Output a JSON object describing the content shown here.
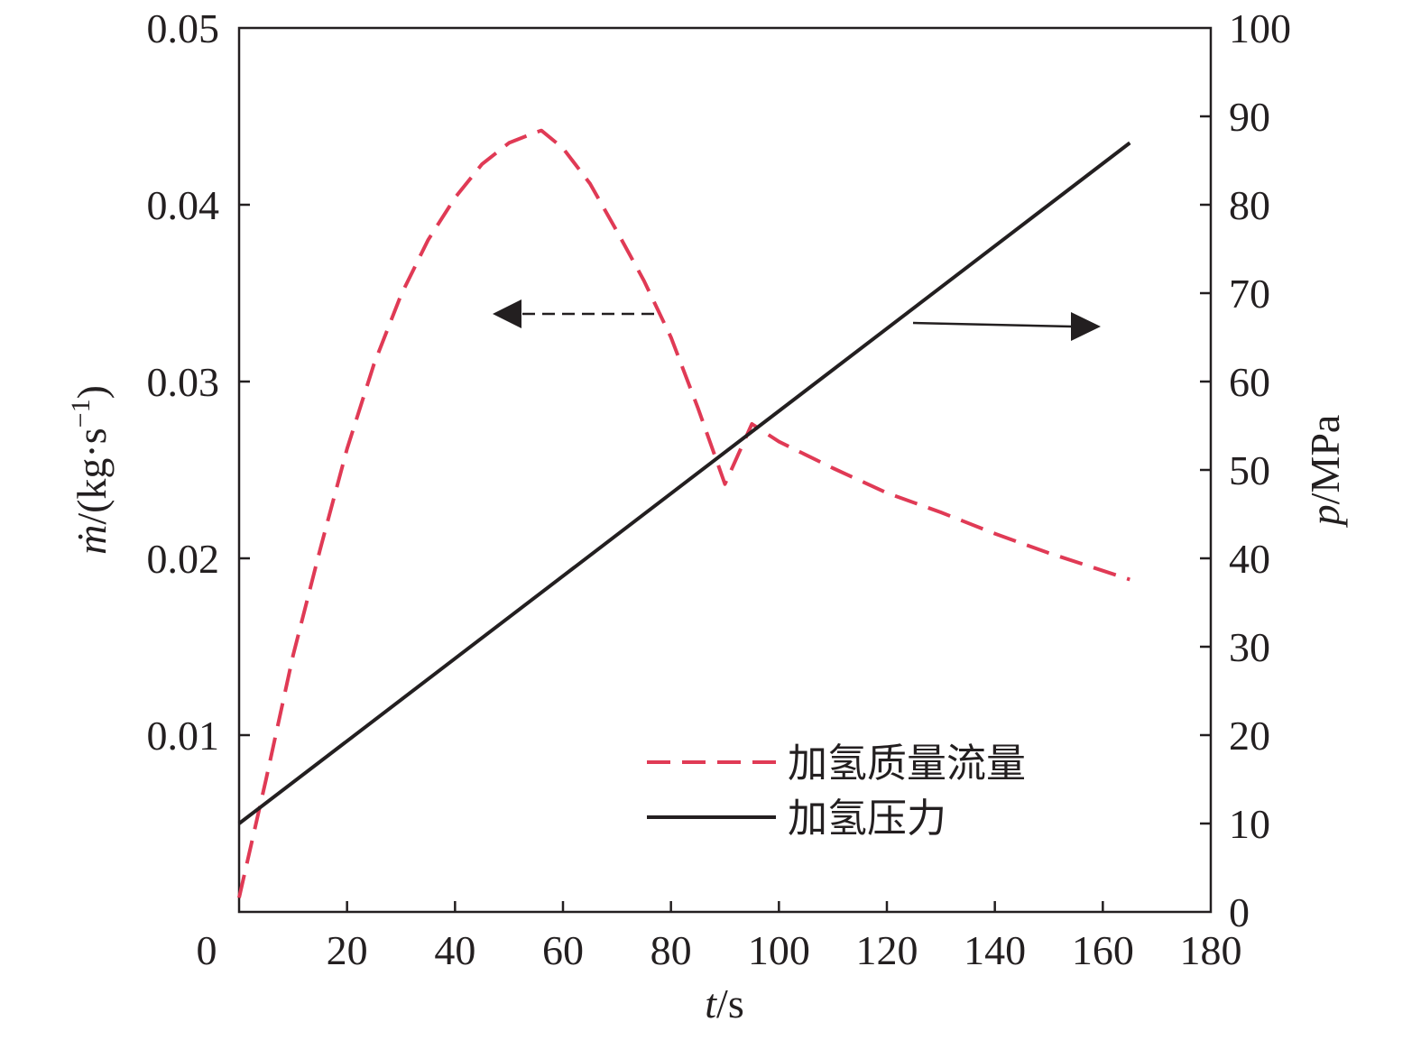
{
  "chart_data": {
    "type": "line",
    "xlabel_italic": "t",
    "xlabel_unit": "/s",
    "ylabel_left_italic": "ṁ",
    "ylabel_left_unit": "/(kg·s",
    "ylabel_left_sup": "−1",
    "ylabel_left_close": ")",
    "ylabel_right_italic": "p",
    "ylabel_right_unit": "/MPa",
    "xlim": [
      0,
      180
    ],
    "ylim_left": [
      0,
      0.05
    ],
    "ylim_right": [
      0,
      100
    ],
    "x_ticks": [
      "0",
      "20",
      "40",
      "60",
      "80",
      "100",
      "120",
      "140",
      "160",
      "180"
    ],
    "y_left_ticks": [
      "0.01",
      "0.02",
      "0.03",
      "0.04",
      "0.05"
    ],
    "y_right_ticks": [
      "0",
      "10",
      "20",
      "30",
      "40",
      "50",
      "60",
      "70",
      "80",
      "90",
      "100"
    ],
    "grid": false,
    "legend_position": "bottom-right",
    "series": [
      {
        "name": "加氢质量流量",
        "axis": "left",
        "style": "dashed",
        "color": "#e03a55",
        "x": [
          0,
          5,
          10,
          15,
          20,
          25,
          30,
          35,
          40,
          45,
          50,
          55,
          56,
          60,
          65,
          70,
          75,
          80,
          85,
          90,
          95,
          100,
          110,
          120,
          130,
          140,
          150,
          160,
          165
        ],
        "y": [
          0.0008,
          0.0075,
          0.0145,
          0.0205,
          0.0262,
          0.031,
          0.0349,
          0.038,
          0.0404,
          0.0423,
          0.0435,
          0.0441,
          0.0442,
          0.0432,
          0.0412,
          0.0385,
          0.0357,
          0.0325,
          0.0285,
          0.0242,
          0.0276,
          0.0266,
          0.0251,
          0.0237,
          0.0226,
          0.0214,
          0.0203,
          0.0193,
          0.0188
        ]
      },
      {
        "name": "加氢压力",
        "axis": "right",
        "style": "solid",
        "color": "#231f20",
        "x": [
          0,
          165
        ],
        "y": [
          10,
          87
        ]
      }
    ],
    "annotations": [
      {
        "direction": "left",
        "style": "dashed",
        "points_to": "left-axis"
      },
      {
        "direction": "right",
        "style": "solid",
        "points_to": "right-axis"
      }
    ]
  }
}
